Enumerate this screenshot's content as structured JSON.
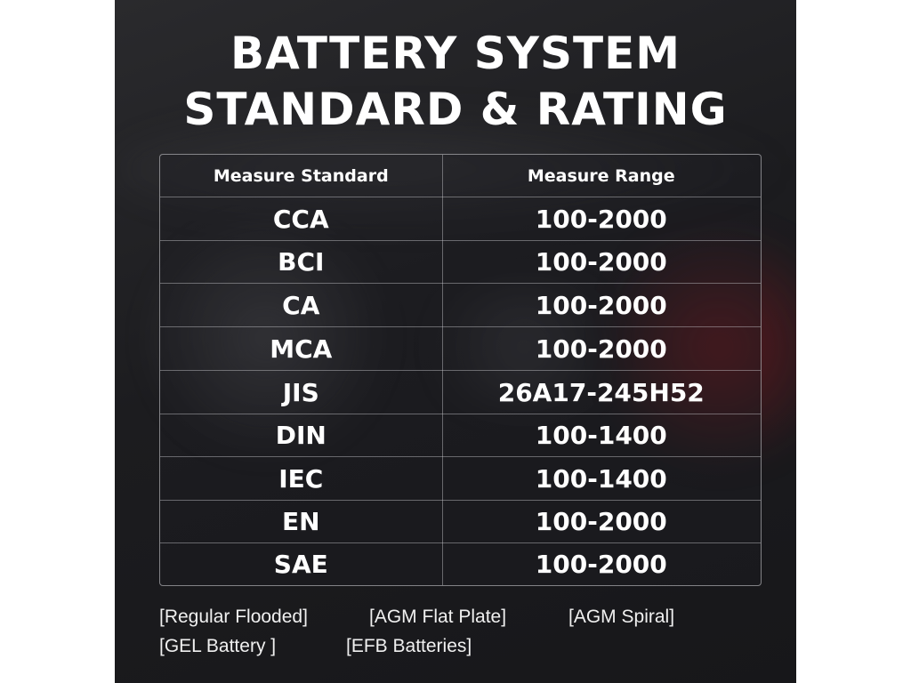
{
  "title": {
    "line1": "BATTERY SYSTEM",
    "line2": "STANDARD & RATING"
  },
  "table": {
    "headers": [
      "Measure Standard",
      "Measure Range"
    ],
    "rows": [
      {
        "standard": "CCA",
        "range": "100-2000"
      },
      {
        "standard": "BCI",
        "range": "100-2000"
      },
      {
        "standard": "CA",
        "range": "100-2000"
      },
      {
        "standard": "MCA",
        "range": "100-2000"
      },
      {
        "standard": "JIS",
        "range": "26A17-245H52"
      },
      {
        "standard": "DIN",
        "range": "100-1400"
      },
      {
        "standard": "IEC",
        "range": "100-1400"
      },
      {
        "standard": "EN",
        "range": "100-2000"
      },
      {
        "standard": "SAE",
        "range": "100-2000"
      }
    ]
  },
  "battery_types": [
    "[Regular Flooded]",
    "[AGM Flat Plate]",
    "[AGM Spiral]",
    "[GEL Battery ]",
    "[EFB Batteries]"
  ],
  "colors": {
    "background": "#1c1c1f",
    "accent_red": "#aa141e",
    "text": "#ffffff"
  }
}
